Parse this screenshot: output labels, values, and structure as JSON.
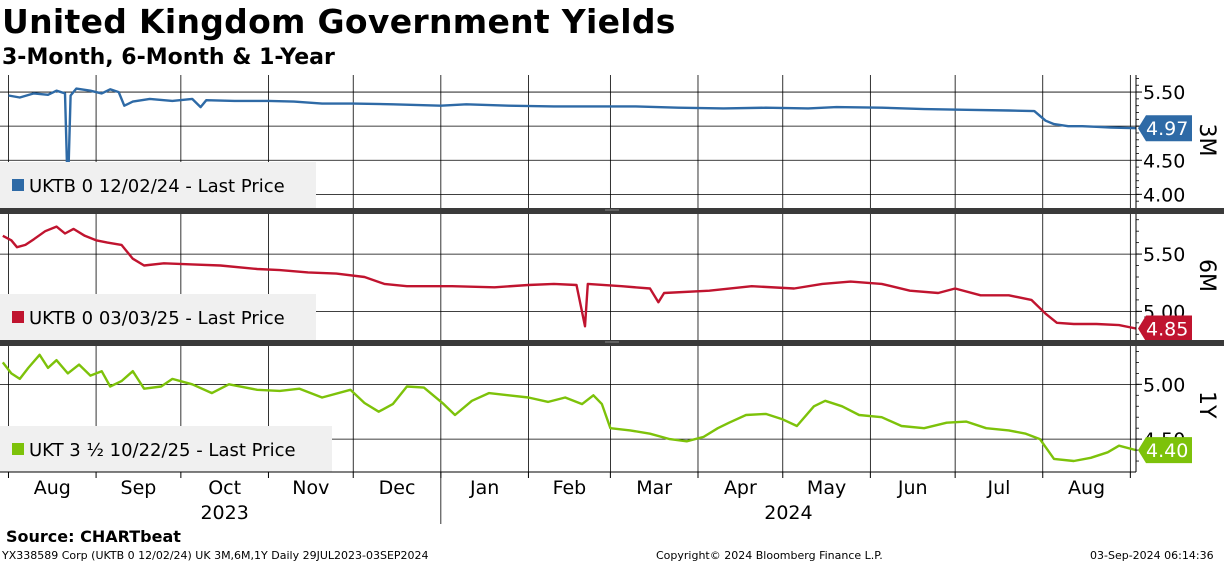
{
  "header": {
    "title": "United Kingdom Government Yields",
    "subtitle": "3-Month, 6-Month & 1-Year"
  },
  "footer": {
    "source": "Source: CHARTbeat",
    "ticker_info": "YX338589 Corp (UKTB 0 12/02/24) UK 3M,6M,1Y  Daily 29JUL2023-03SEP2024",
    "copyright": "Copyright© 2024 Bloomberg Finance L.P.",
    "timestamp": "03-Sep-2024 06:14:36"
  },
  "chart_data": {
    "type": "line",
    "x_range": [
      "2023-07-29",
      "2024-09-03"
    ],
    "month_labels": [
      "Aug",
      "Sep",
      "Oct",
      "Nov",
      "Dec",
      "Jan",
      "Feb",
      "Mar",
      "Apr",
      "May",
      "Jun",
      "Jul",
      "Aug"
    ],
    "year_labels": [
      "2023",
      "2024"
    ],
    "grid": true,
    "panels": [
      {
        "id": "3M",
        "axis_label": "3M",
        "legend": "UKTB 0 12/02/24 - Last Price",
        "color": "#2e6aa6",
        "ylim": [
          3.8,
          5.75
        ],
        "yticks": [
          "5.50",
          "5.00",
          "4.50",
          "4.00"
        ],
        "yticks_values": [
          5.5,
          5.0,
          4.5,
          4.0
        ],
        "last_value": "4.97",
        "series": [
          [
            "2023-08-01",
            5.45
          ],
          [
            "2023-08-05",
            5.42
          ],
          [
            "2023-08-10",
            5.48
          ],
          [
            "2023-08-15",
            5.46
          ],
          [
            "2023-08-18",
            5.52
          ],
          [
            "2023-08-21",
            5.48
          ],
          [
            "2023-08-22",
            4.0
          ],
          [
            "2023-08-23",
            5.45
          ],
          [
            "2023-08-25",
            5.55
          ],
          [
            "2023-08-30",
            5.52
          ],
          [
            "2023-09-03",
            5.48
          ],
          [
            "2023-09-06",
            5.54
          ],
          [
            "2023-09-09",
            5.5
          ],
          [
            "2023-09-11",
            5.3
          ],
          [
            "2023-09-14",
            5.36
          ],
          [
            "2023-09-20",
            5.4
          ],
          [
            "2023-09-28",
            5.37
          ],
          [
            "2023-10-05",
            5.4
          ],
          [
            "2023-10-08",
            5.28
          ],
          [
            "2023-10-10",
            5.38
          ],
          [
            "2023-10-20",
            5.37
          ],
          [
            "2023-11-01",
            5.37
          ],
          [
            "2023-11-10",
            5.36
          ],
          [
            "2023-11-20",
            5.33
          ],
          [
            "2023-12-01",
            5.33
          ],
          [
            "2023-12-15",
            5.32
          ],
          [
            "2024-01-01",
            5.3
          ],
          [
            "2024-01-10",
            5.32
          ],
          [
            "2024-01-25",
            5.3
          ],
          [
            "2024-02-10",
            5.29
          ],
          [
            "2024-02-25",
            5.29
          ],
          [
            "2024-03-10",
            5.29
          ],
          [
            "2024-03-25",
            5.27
          ],
          [
            "2024-04-10",
            5.26
          ],
          [
            "2024-04-25",
            5.27
          ],
          [
            "2024-05-10",
            5.26
          ],
          [
            "2024-05-20",
            5.28
          ],
          [
            "2024-06-05",
            5.27
          ],
          [
            "2024-06-20",
            5.25
          ],
          [
            "2024-07-05",
            5.24
          ],
          [
            "2024-07-20",
            5.23
          ],
          [
            "2024-07-29",
            5.22
          ],
          [
            "2024-08-02",
            5.08
          ],
          [
            "2024-08-05",
            5.03
          ],
          [
            "2024-08-10",
            5.0
          ],
          [
            "2024-08-15",
            5.0
          ],
          [
            "2024-08-20",
            4.99
          ],
          [
            "2024-08-25",
            4.98
          ],
          [
            "2024-09-03",
            4.97
          ]
        ]
      },
      {
        "id": "6M",
        "axis_label": "6M",
        "legend": "UKTB 0 03/03/25 - Last Price",
        "color": "#c0142f",
        "ylim": [
          4.75,
          5.85
        ],
        "yticks": [
          "5.50",
          "5.00"
        ],
        "yticks_values": [
          5.5,
          5.0
        ],
        "last_value": "4.85",
        "series": [
          [
            "2023-07-30",
            5.66
          ],
          [
            "2023-08-02",
            5.62
          ],
          [
            "2023-08-04",
            5.56
          ],
          [
            "2023-08-07",
            5.58
          ],
          [
            "2023-08-10",
            5.63
          ],
          [
            "2023-08-14",
            5.7
          ],
          [
            "2023-08-18",
            5.74
          ],
          [
            "2023-08-21",
            5.68
          ],
          [
            "2023-08-24",
            5.72
          ],
          [
            "2023-08-28",
            5.66
          ],
          [
            "2023-09-01",
            5.62
          ],
          [
            "2023-09-05",
            5.6
          ],
          [
            "2023-09-10",
            5.58
          ],
          [
            "2023-09-14",
            5.46
          ],
          [
            "2023-09-18",
            5.4
          ],
          [
            "2023-09-25",
            5.42
          ],
          [
            "2023-10-05",
            5.41
          ],
          [
            "2023-10-15",
            5.4
          ],
          [
            "2023-10-28",
            5.37
          ],
          [
            "2023-11-05",
            5.36
          ],
          [
            "2023-11-15",
            5.34
          ],
          [
            "2023-11-25",
            5.33
          ],
          [
            "2023-12-05",
            5.3
          ],
          [
            "2023-12-12",
            5.24
          ],
          [
            "2023-12-20",
            5.22
          ],
          [
            "2024-01-05",
            5.22
          ],
          [
            "2024-01-20",
            5.21
          ],
          [
            "2024-02-01",
            5.23
          ],
          [
            "2024-02-10",
            5.24
          ],
          [
            "2024-02-18",
            5.23
          ],
          [
            "2024-02-21",
            4.87
          ],
          [
            "2024-02-22",
            5.24
          ],
          [
            "2024-03-05",
            5.22
          ],
          [
            "2024-03-15",
            5.2
          ],
          [
            "2024-03-18",
            5.08
          ],
          [
            "2024-03-20",
            5.16
          ],
          [
            "2024-04-05",
            5.18
          ],
          [
            "2024-04-20",
            5.22
          ],
          [
            "2024-05-05",
            5.2
          ],
          [
            "2024-05-15",
            5.24
          ],
          [
            "2024-05-25",
            5.26
          ],
          [
            "2024-06-05",
            5.24
          ],
          [
            "2024-06-15",
            5.18
          ],
          [
            "2024-06-25",
            5.16
          ],
          [
            "2024-07-01",
            5.2
          ],
          [
            "2024-07-10",
            5.14
          ],
          [
            "2024-07-20",
            5.14
          ],
          [
            "2024-07-28",
            5.1
          ],
          [
            "2024-08-02",
            4.98
          ],
          [
            "2024-08-06",
            4.9
          ],
          [
            "2024-08-12",
            4.89
          ],
          [
            "2024-08-20",
            4.89
          ],
          [
            "2024-08-28",
            4.88
          ],
          [
            "2024-09-03",
            4.85
          ]
        ]
      },
      {
        "id": "1Y",
        "axis_label": "1Y",
        "legend": "UKT 3 ½ 10/22/25 - Last Price",
        "color": "#7dc20a",
        "ylim": [
          4.2,
          5.35
        ],
        "yticks": [
          "5.00",
          "4.50"
        ],
        "yticks_values": [
          5.0,
          4.5
        ],
        "last_value": "4.40",
        "series": [
          [
            "2023-07-30",
            5.2
          ],
          [
            "2023-08-02",
            5.1
          ],
          [
            "2023-08-05",
            5.05
          ],
          [
            "2023-08-08",
            5.15
          ],
          [
            "2023-08-12",
            5.27
          ],
          [
            "2023-08-15",
            5.15
          ],
          [
            "2023-08-18",
            5.22
          ],
          [
            "2023-08-22",
            5.1
          ],
          [
            "2023-08-26",
            5.18
          ],
          [
            "2023-08-30",
            5.08
          ],
          [
            "2023-09-03",
            5.12
          ],
          [
            "2023-09-06",
            4.98
          ],
          [
            "2023-09-10",
            5.03
          ],
          [
            "2023-09-14",
            5.12
          ],
          [
            "2023-09-18",
            4.96
          ],
          [
            "2023-09-24",
            4.98
          ],
          [
            "2023-09-28",
            5.05
          ],
          [
            "2023-10-05",
            5.0
          ],
          [
            "2023-10-12",
            4.92
          ],
          [
            "2023-10-18",
            5.0
          ],
          [
            "2023-10-28",
            4.95
          ],
          [
            "2023-11-05",
            4.94
          ],
          [
            "2023-11-12",
            4.96
          ],
          [
            "2023-11-20",
            4.88
          ],
          [
            "2023-11-30",
            4.95
          ],
          [
            "2023-12-05",
            4.83
          ],
          [
            "2023-12-10",
            4.75
          ],
          [
            "2023-12-15",
            4.82
          ],
          [
            "2023-12-20",
            4.98
          ],
          [
            "2023-12-26",
            4.97
          ],
          [
            "2024-01-02",
            4.82
          ],
          [
            "2024-01-06",
            4.72
          ],
          [
            "2024-01-12",
            4.85
          ],
          [
            "2024-01-18",
            4.92
          ],
          [
            "2024-01-25",
            4.9
          ],
          [
            "2024-02-01",
            4.88
          ],
          [
            "2024-02-08",
            4.84
          ],
          [
            "2024-02-14",
            4.88
          ],
          [
            "2024-02-20",
            4.82
          ],
          [
            "2024-02-24",
            4.9
          ],
          [
            "2024-02-27",
            4.82
          ],
          [
            "2024-03-01",
            4.6
          ],
          [
            "2024-03-08",
            4.58
          ],
          [
            "2024-03-15",
            4.55
          ],
          [
            "2024-03-22",
            4.5
          ],
          [
            "2024-03-28",
            4.48
          ],
          [
            "2024-04-03",
            4.52
          ],
          [
            "2024-04-08",
            4.6
          ],
          [
            "2024-04-12",
            4.65
          ],
          [
            "2024-04-18",
            4.72
          ],
          [
            "2024-04-25",
            4.73
          ],
          [
            "2024-05-01",
            4.68
          ],
          [
            "2024-05-06",
            4.62
          ],
          [
            "2024-05-12",
            4.8
          ],
          [
            "2024-05-16",
            4.85
          ],
          [
            "2024-05-22",
            4.8
          ],
          [
            "2024-05-28",
            4.72
          ],
          [
            "2024-06-05",
            4.7
          ],
          [
            "2024-06-12",
            4.62
          ],
          [
            "2024-06-20",
            4.6
          ],
          [
            "2024-06-28",
            4.65
          ],
          [
            "2024-07-05",
            4.66
          ],
          [
            "2024-07-12",
            4.6
          ],
          [
            "2024-07-20",
            4.58
          ],
          [
            "2024-07-26",
            4.55
          ],
          [
            "2024-07-31",
            4.5
          ],
          [
            "2024-08-05",
            4.32
          ],
          [
            "2024-08-12",
            4.3
          ],
          [
            "2024-08-18",
            4.33
          ],
          [
            "2024-08-24",
            4.38
          ],
          [
            "2024-08-28",
            4.44
          ],
          [
            "2024-09-03",
            4.4
          ]
        ]
      }
    ]
  }
}
